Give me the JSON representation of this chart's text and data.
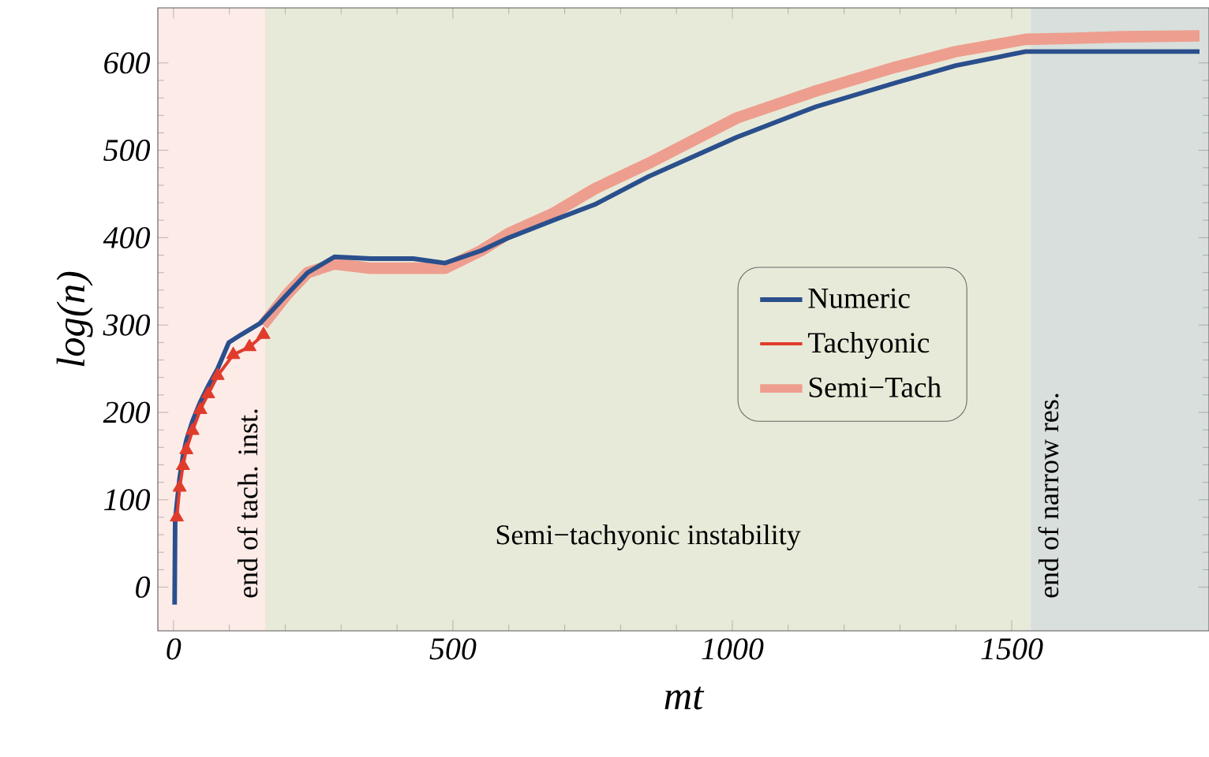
{
  "chart_data": {
    "type": "line",
    "xlabel": "mt",
    "ylabel": "log(n)",
    "xlim": [
      -28,
      1853
    ],
    "ylim": [
      -50,
      663
    ],
    "xticks": [
      0,
      500,
      1000,
      1500
    ],
    "yticks": [
      0,
      100,
      200,
      300,
      400,
      500,
      600
    ],
    "legend": "right",
    "grid": false,
    "bands": [
      {
        "axis": "x",
        "from": -28,
        "to": 164,
        "label": "end of tach. inst.",
        "color": "#fdebe8"
      },
      {
        "axis": "x",
        "from": 164,
        "to": 1534,
        "label": "Semi−tachyonic instability",
        "color": "#e8ead9"
      },
      {
        "axis": "x",
        "from": 1534,
        "to": 1853,
        "label": "end of narrow res.",
        "color": "#d8dfdc"
      }
    ],
    "series": [
      {
        "name": "Numeric",
        "color": "#2a4f8c",
        "line_style": "solid",
        "marker": "none",
        "x": [
          2,
          3,
          6,
          11,
          17,
          23,
          34,
          48,
          62,
          79,
          99,
          121,
          155,
          203,
          240,
          288,
          353,
          429,
          486,
          550,
          600,
          680,
          754,
          850,
          1008,
          1150,
          1291,
          1400,
          1525,
          1600,
          1700,
          1836
        ],
        "values": [
          -20,
          76,
          95,
          125,
          150,
          168,
          190,
          212,
          230,
          250,
          280,
          289,
          302,
          335,
          360,
          378,
          376,
          376,
          371,
          385,
          400,
          420,
          438,
          470,
          515,
          550,
          577,
          597,
          613,
          613,
          613,
          613
        ]
      },
      {
        "name": "Tachyonic",
        "color": "#e03c2c",
        "line_style": "solid",
        "marker": "triangle",
        "x": [
          6,
          11,
          17,
          23,
          34,
          48,
          62,
          79,
          107,
          136,
          161
        ],
        "values": [
          80,
          114,
          139,
          157,
          179,
          203,
          221,
          242,
          266,
          275,
          289
        ]
      },
      {
        "name": "Semi−Tach",
        "color": "#ee9e8e",
        "line_style": "solid",
        "marker": "none",
        "x": [
          160,
          203,
          240,
          288,
          353,
          429,
          486,
          550,
          600,
          680,
          754,
          850,
          1008,
          1150,
          1291,
          1400,
          1525,
          1600,
          1700,
          1836
        ],
        "values": [
          300,
          335,
          360,
          370,
          365,
          365,
          365,
          385,
          405,
          428,
          456,
          485,
          537,
          568,
          595,
          613,
          627,
          628,
          630,
          631
        ]
      }
    ]
  }
}
